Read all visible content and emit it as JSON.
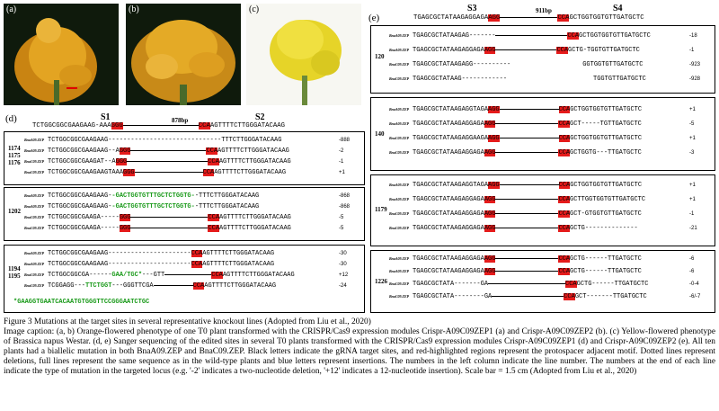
{
  "photos": [
    {
      "label": "(a)",
      "color": "#e0a020"
    },
    {
      "label": "(b)",
      "color": "#e2a41c"
    },
    {
      "label": "(c)",
      "color": "#e8dc2c"
    }
  ],
  "panel_d": {
    "tag": "(d)",
    "sites": [
      "S1",
      "S2"
    ],
    "gap_label": "878bp",
    "ref_left": "TCTGGCGGCGAAGAAG-AAA",
    "ref_pam1": "GGG",
    "ref_pam2": "CCA",
    "ref_right": "AGTTTTCTTGGGATACAAG",
    "groups": [
      {
        "line": "1174\n1175\n1176",
        "rows": [
          {
            "label": "BnaA09.ZEP",
            "left": "TCTGGCGGCGAAGAAG",
            "pam1": "",
            "mid": "------------------------------",
            "pam2": "",
            "right": "TTTCTTGGGATACAAG",
            "count": "-888"
          },
          {
            "label": "BnaA09.ZEP",
            "left": "TCTGGCGGCGAAGAAG--A",
            "pam1": "GGG",
            "mid": "",
            "pam2": "CCA",
            "right": "AGTTTTCTTGGGATACAAG",
            "count": "-2"
          },
          {
            "label": "BnaC09.ZEP",
            "left": "TCTGGCGGCGAAGAT--A",
            "pam1": "GGG",
            "mid": "",
            "pam2": "CCA",
            "right": "AGTTTTCTTGGGATACAAG",
            "count": "-1"
          },
          {
            "label": "BnaC09.ZEP",
            "left": "TCTGGCGGCGAAGAAGTAAA",
            "pam1": "GGG",
            "mid": "",
            "pam2": "CCA",
            "right": "AGTTTTCTTGGGATACAAG",
            "count": "+1"
          }
        ]
      },
      {
        "line": "1202",
        "rows": [
          {
            "label": "BnaA09.ZEP",
            "left": "TCTGGCGGCGAAGAAG-",
            "ins": "-GACTGGTGTTTGCTCTGGTG-",
            "right": "-TTTCTTGGGATACAAG",
            "count": "-868"
          },
          {
            "label": "BnaA09.ZEP",
            "left": "TCTGGCGGCGAAGAAG-",
            "ins": "-GACTGGTGTTTGCTCTGGTG-",
            "right": "-TTTCTTGGGATACAAG",
            "count": "-868"
          },
          {
            "label": "BnaC09.ZEP",
            "left": "TCTGGCGGCGAAGA-----",
            "pam1": "GGG",
            "mid": "",
            "pam2": "CCA",
            "right": "AGTTTTCTTGGGATACAAG",
            "count": "-5"
          },
          {
            "label": "BnaC09.ZEP",
            "left": "TCTGGCGGCGAAGA-----",
            "pam1": "GGG",
            "mid": "",
            "pam2": "CCA",
            "right": "AGTTTTCTTGGGATACAAG",
            "count": "-5"
          }
        ]
      },
      {
        "line": "1194\n1195",
        "rows": [
          {
            "label": "BnaA09.ZEP",
            "left": "TCTGGCGGCGAAGAAG",
            "pam1": "",
            "mid": "----------------------",
            "pam2": "CCA",
            "right": "AGTTTTCTTGGGATACAAG",
            "count": "-30"
          },
          {
            "label": "BnaA09.ZEP",
            "left": "TCTGGCGGCGAAGAAG",
            "pam1": "",
            "mid": "----------------------",
            "pam2": "CCA",
            "right": "AGTTTTCTTGGGATACAAG",
            "count": "-30"
          },
          {
            "label": "BnaC09.ZEP",
            "left": "TCTGGCGGCGA------",
            "ins": "GAA/TGC*",
            "right": "---GTT",
            "pam2": "CCA",
            "tail": "AGTTTTCTTGGGATACAAG",
            "count": "+12"
          },
          {
            "label": "BnaC09.ZEP",
            "left": "TCGGAGG---",
            "ins": "TTCTGGT",
            "right": "---GGGTTCGA",
            "pam2": "CCA",
            "tail": "AGTTTTCTTGGGATACAAG",
            "count": "-24"
          }
        ],
        "note": "*GAAGGTGAATCACAATGTGGGTTCCGGGAATCTGC"
      }
    ]
  },
  "panel_e": {
    "tag": "(e)",
    "sites": [
      "S3",
      "S4"
    ],
    "gap_label": "911bp",
    "ref_left": "TGAGCGCTATAAGAGGAGA",
    "ref_pam1": "AGG",
    "ref_pam2": "CCA",
    "ref_right": "GCTGGTGGTGTTGATGCTC",
    "groups": [
      {
        "line": "120",
        "rows": [
          {
            "label": "BnaA09.ZEP",
            "left": "TGAGCGCTATAAGAG-------",
            "pam2": "CCA",
            "right": "GCTGGTGGTGTTGATGCTC",
            "count": "-18"
          },
          {
            "label": "BnaA09.ZEP",
            "left": "TGAGCGCTATAAGAGGAGA",
            "pam1": "AGG",
            "pam2": "CCA",
            "right": "GCTG-TGGTGTTGATGCTC",
            "count": "-1"
          },
          {
            "label": "BnaC09.ZEP",
            "left": "TGAGCGCTATAAGAGG----------",
            "pam2": "",
            "right": "GGTGGTGTTGATGCTC",
            "count": "-923"
          },
          {
            "label": "BnaC09.ZEP",
            "left": "TGAGCGCTATAAG------------",
            "pam2": "",
            "right": "TGGTGTTGATGCTC",
            "count": "-928"
          }
        ]
      },
      {
        "line": "140",
        "rows": [
          {
            "label": "BnaA09.ZEP",
            "left": "TGAGCGCTATAAGAGGTAGA",
            "pam1": "AGG",
            "pam2": "CCA",
            "right": "GCTGGTGGTGTTGATGCTC",
            "count": "+1"
          },
          {
            "label": "BnaA09.ZEP",
            "left": "TGAGCGCTATAAGAGGAGA",
            "pam1": "AGG",
            "pam2": "CCA",
            "right": "GCT-----TGTTGATGCTC",
            "count": "-5"
          },
          {
            "label": "BnaC09.ZEP",
            "left": "TGAGCGCTATAAGAGGAAGA",
            "pam1": "AGG",
            "pam2": "CCA",
            "right": "GCTGGTGGTGTTGATGCTC",
            "count": "+1"
          },
          {
            "label": "BnaC09.ZEP",
            "left": "TGAGCGCTATAAGAGGAGA",
            "pam1": "AGG",
            "pam2": "CCA",
            "right": "GCTGGTG---TTGATGCTC",
            "count": "-3"
          }
        ]
      },
      {
        "line": "1179",
        "rows": [
          {
            "label": "BnaA09.ZEP",
            "left": "TGAGCGCTATAAGAGGTAGA",
            "pam1": "AGG",
            "pam2": "CCA",
            "right": "GCTGGTGGTGTTGATGCTC",
            "count": "+1"
          },
          {
            "label": "BnaA09.ZEP",
            "left": "TGAGCGCTATAAGAGGAGA",
            "pam1": "AGG",
            "pam2": "CCA",
            "right": "GCTTGGTGGTGTTGATGCTC",
            "count": "+1"
          },
          {
            "label": "BnaC09.ZEP",
            "left": "TGAGCGCTATAAGAGGAGA",
            "pam1": "AGG",
            "pam2": "CCA",
            "right": "GCT-GTGGTGTTGATGCTC",
            "count": "-1"
          },
          {
            "label": "BnaC09.ZEP",
            "left": "TGAGCGCTATAAGAGGAGA",
            "pam1": "AGG",
            "pam2": "CCA",
            "right": "GCTG--------------",
            "count": "-21"
          }
        ]
      },
      {
        "line": "1226",
        "rows": [
          {
            "label": "BnaA09.ZEP",
            "left": "TGAGCGCTATAAGAGGAGA",
            "pam1": "AGG",
            "pam2": "CCA",
            "right": "GCTG------TTGATGCTC",
            "count": "-6"
          },
          {
            "label": "BnaA09.ZEP",
            "left": "TGAGCGCTATAAGAGGAGA",
            "pam1": "AGG",
            "pam2": "CCA",
            "right": "GCTG------TTGATGCTC",
            "count": "-6"
          },
          {
            "label": "BnaC09.ZEP",
            "left": "TGAGCGCTATA-------GA",
            "pam1": "",
            "pam2": "CCA",
            "right": "GCTG------TTGATGCTC",
            "count": "-0-4"
          },
          {
            "label": "BnaC09.ZEP",
            "left": "TGAGCGCTATA--------GA",
            "pam1": "",
            "pam2": "CCA",
            "right": "GCT-------TTGATGCTC",
            "count": "-6/-7"
          }
        ]
      }
    ]
  },
  "caption": {
    "title": "Figure 3 Mutations at the target sites in several representative knockout lines (Adopted from Liu et al., 2020)",
    "body": "Image caption: (a, b) Orange-flowered phenotype of one T0 plant transformed with the CRISPR/Cas9 expression modules Crispr-A09C09ZEP1 (a) and Crispr-A09C09ZEP2 (b). (c) Yellow-flowered phenotype of Brassica napus Westar. (d, e) Sanger sequencing of the edited sites in several T0 plants transformed with the CRISPR/Cas9 expression modules Crispr-A09C09ZEP1 (d) and Crispr-A09C09ZEP2 (e). All ten plants had a biallelic mutation in both BnaA09.ZEP and BnaC09.ZEP. Black letters indicate the gRNA target sites, and red-highlighted regions represent the protospacer adjacent motif. Dotted lines represent deletions, full lines represent the same sequence as in the wild-type plants and blue letters represent insertions. The numbers in the left column indicate the line number. The numbers at the end of each line indicate the type of mutation in the targeted locus (e.g. '-2' indicates a two-nucleotide deletion, '+12' indicates a 12-nucleotide insertion). Scale bar = 1.5 cm (Adopted from Liu et al., 2020)"
  },
  "colors": {
    "pam": "#e51b1b",
    "insertion": "#1a9a1a"
  }
}
